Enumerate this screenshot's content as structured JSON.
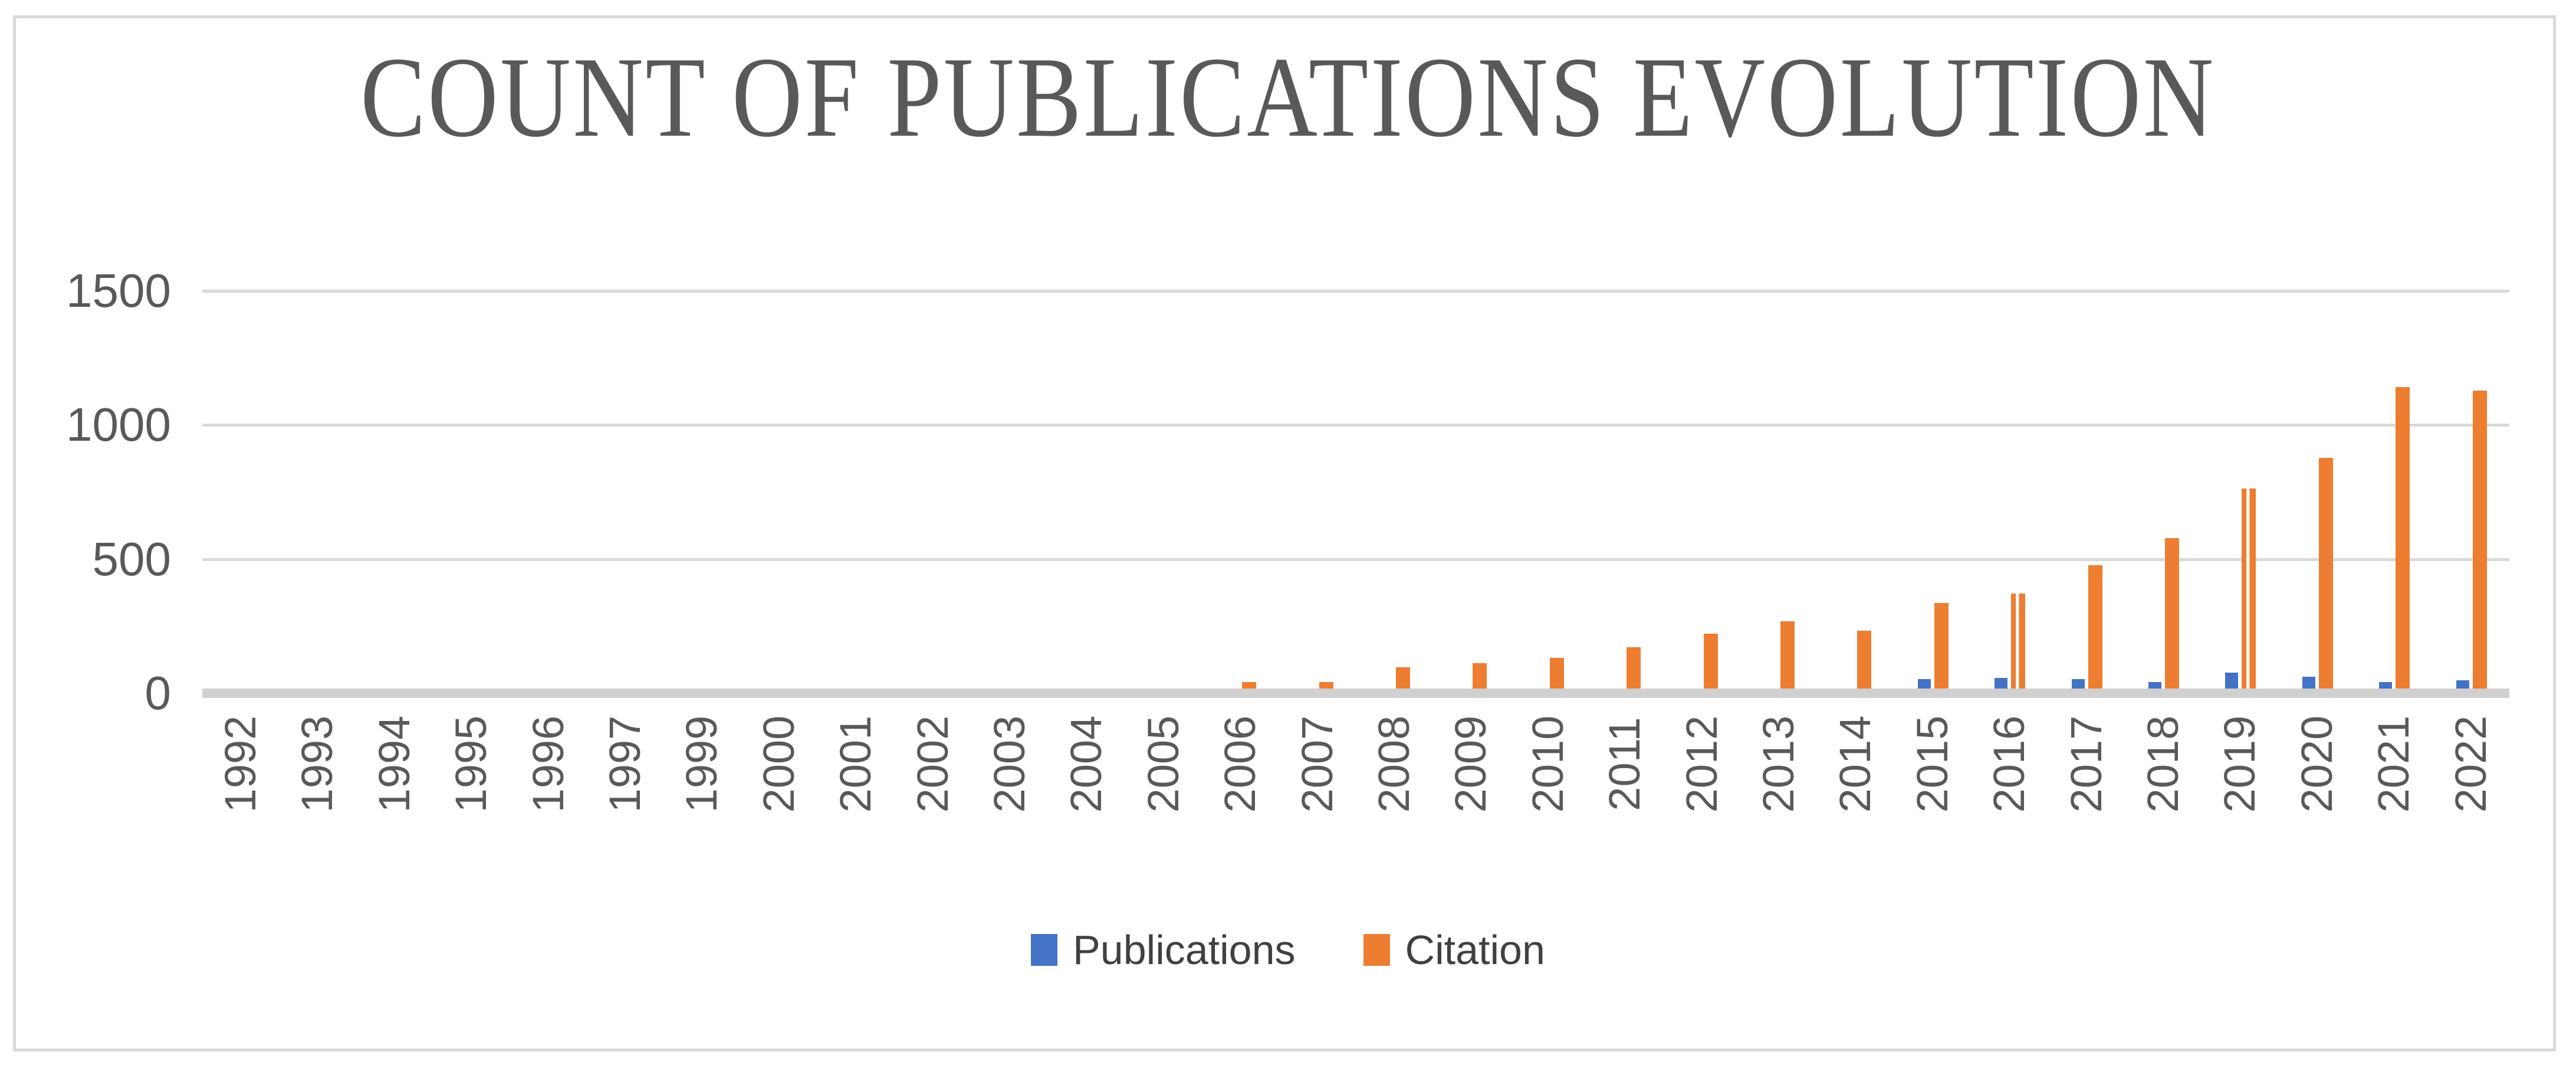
{
  "figure": {
    "title": "COUNT OF PUBLICATIONS EVOLUTION"
  },
  "chart_data": {
    "type": "bar",
    "title": "COUNT OF PUBLICATIONS EVOLUTION",
    "categories": [
      "1992",
      "1993",
      "1994",
      "1995",
      "1996",
      "1997",
      "1999",
      "2000",
      "2001",
      "2002",
      "2003",
      "2004",
      "2005",
      "2006",
      "2007",
      "2008",
      "2009",
      "2010",
      "2011",
      "2012",
      "2013",
      "2014",
      "2015",
      "2016",
      "2017",
      "2018",
      "2019",
      "2020",
      "2021",
      "2022"
    ],
    "series": [
      {
        "name": "Publications",
        "color": "#4472C4",
        "values": [
          0,
          0,
          0,
          0,
          0,
          0,
          0,
          0,
          0,
          0,
          0,
          0,
          0,
          0,
          0,
          0,
          0,
          0,
          0,
          0,
          0,
          0,
          35,
          40,
          35,
          25,
          60,
          45,
          25,
          30
        ]
      },
      {
        "name": "Citation",
        "color": "#ED7D31",
        "values": [
          0,
          0,
          0,
          0,
          0,
          0,
          0,
          0,
          0,
          0,
          0,
          0,
          0,
          25,
          25,
          80,
          95,
          115,
          155,
          205,
          250,
          215,
          320,
          355,
          460,
          560,
          745,
          860,
          1125,
          1110
        ]
      }
    ],
    "ylim": [
      0,
      1500
    ],
    "yticks": [
      0,
      500,
      1000,
      1500
    ],
    "xlabel": "",
    "ylabel": "",
    "grid": true,
    "legend_position": "bottom",
    "x_tick_rotation_deg": 90,
    "striped_bars": [
      {
        "series": "Citation",
        "category": "2016"
      },
      {
        "series": "Citation",
        "category": "2019"
      }
    ],
    "note_missing_category": "1998 not present on axis"
  },
  "legend": {
    "items": [
      {
        "label": "Publications",
        "color": "#4472C4"
      },
      {
        "label": "Citation",
        "color": "#ED7D31"
      }
    ]
  },
  "colors": {
    "publications_blue": "#4472C4",
    "citation_orange": "#ED7D31",
    "gridline_gray": "#D9D9D9",
    "axis_line_gray": "#D0D0D0",
    "text_gray": "#595959",
    "legend_text": "#404040",
    "frame_border": "#D9D9D9"
  }
}
